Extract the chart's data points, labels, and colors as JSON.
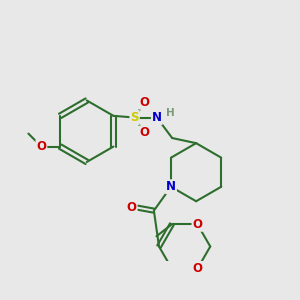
{
  "background_color": "#e8e8e8",
  "atom_colors": {
    "C": "#2d6e2d",
    "H": "#7a9a7a",
    "N": "#0000cc",
    "O": "#cc0000",
    "S": "#cccc00"
  },
  "bond_color": "#2d6e2d",
  "line_width": 1.5,
  "font_size": 8.5,
  "figsize": [
    3.0,
    3.0
  ],
  "dpi": 100
}
